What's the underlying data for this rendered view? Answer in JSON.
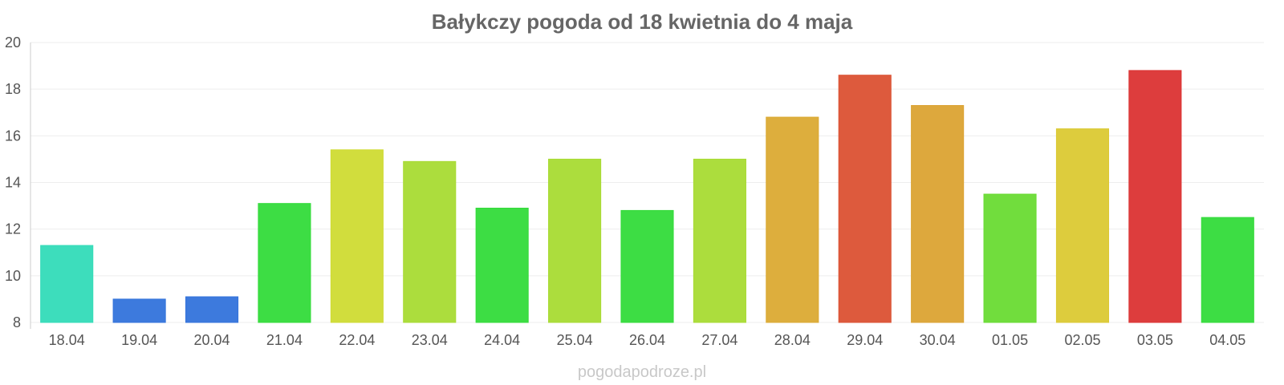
{
  "chart_data": {
    "type": "bar",
    "title": "Bałykczy pogoda od 18 kwietnia do 4 maja",
    "xlabel": "",
    "ylabel": "",
    "ylim": [
      8,
      20
    ],
    "y_ticks": [
      "8",
      "10",
      "12",
      "14",
      "16",
      "18",
      "20"
    ],
    "grid": true,
    "categories": [
      "18.04",
      "19.04",
      "20.04",
      "21.04",
      "22.04",
      "23.04",
      "24.04",
      "25.04",
      "26.04",
      "27.04",
      "28.04",
      "29.04",
      "30.04",
      "01.05",
      "02.05",
      "03.05",
      "04.05"
    ],
    "values": [
      11.3,
      9.0,
      9.1,
      13.1,
      15.4,
      14.9,
      12.9,
      15.0,
      12.8,
      15.0,
      16.8,
      18.6,
      17.3,
      13.5,
      16.3,
      18.8,
      12.5
    ],
    "colors": [
      "#33dbb8",
      "#3373db",
      "#3373db",
      "#33db3a",
      "#cfdb33",
      "#a8db33",
      "#33db3a",
      "#a8db33",
      "#33db3a",
      "#a8db33",
      "#dbaa33",
      "#db5133",
      "#dba333",
      "#69db33",
      "#dbc933",
      "#db3333",
      "#33db3a"
    ]
  },
  "footer": "pogodapodroze.pl"
}
